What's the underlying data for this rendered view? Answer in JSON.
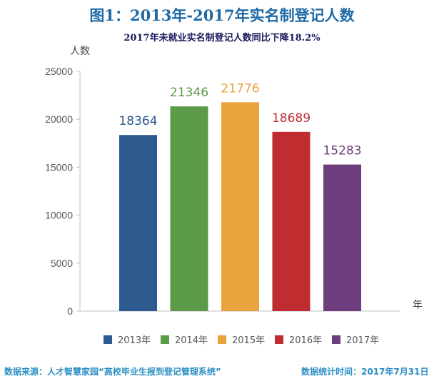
{
  "title": "图1：2013年-2017年实名制登记人数",
  "subtitle": "2017年未就业实名制登记人数同比下降18.2%",
  "chart_data": {
    "type": "bar",
    "categories": [
      "2013年",
      "2014年",
      "2015年",
      "2016年",
      "2017年"
    ],
    "values": [
      18364,
      21346,
      21776,
      18689,
      15283
    ],
    "colors": [
      "#2c5a8f",
      "#5b9a47",
      "#e8a33d",
      "#bf2d31",
      "#6e3d7d"
    ],
    "ylabel": "人数",
    "xlabel": "年",
    "ylim": [
      0,
      25000
    ],
    "yticks": [
      0,
      5000,
      10000,
      15000,
      20000,
      25000
    ],
    "grid": false,
    "legend": "bottom",
    "data_labels": true
  },
  "footer": {
    "source": "数据来源：人才智慧家园“高校毕业生报到登记管理系统”",
    "stat_time": "数据统计时间：2017年7月31日"
  }
}
